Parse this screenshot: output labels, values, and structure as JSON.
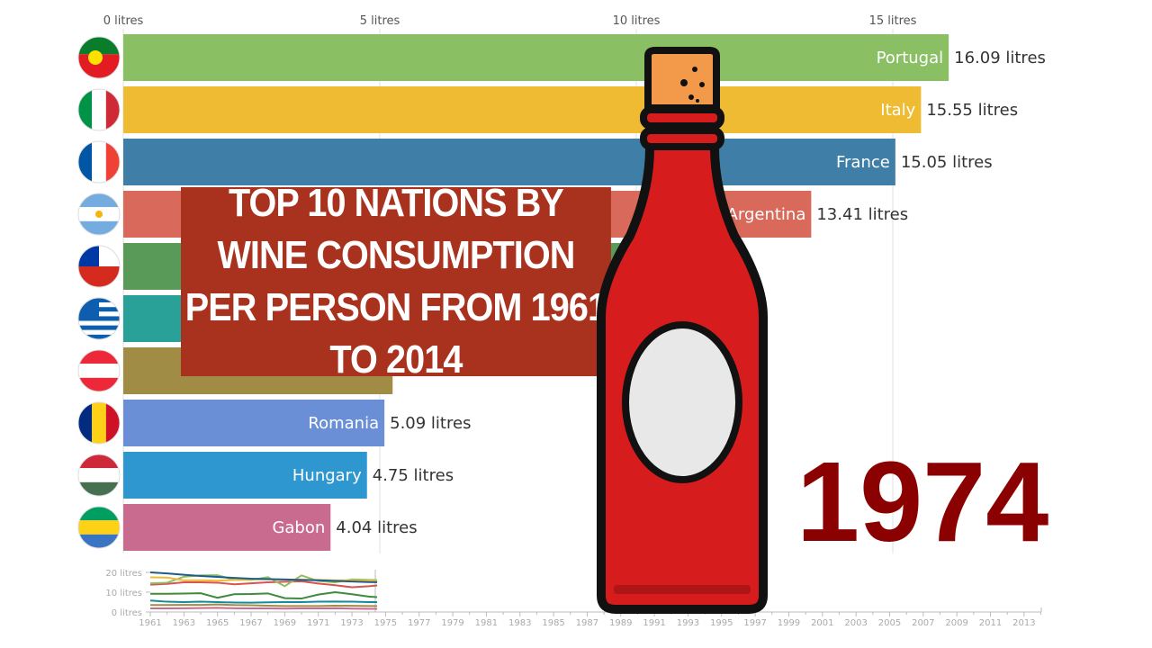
{
  "chart_data": {
    "type": "bar",
    "orientation": "horizontal",
    "title": "TOP 10 NATIONS BY WINE CONSUMPTION PER PERSON FROM 1961 TO 2014",
    "year": "1974",
    "xlim": [
      0,
      18
    ],
    "x_ticks": [
      {
        "v": 0,
        "label": "0 litres"
      },
      {
        "v": 5,
        "label": "5 litres"
      },
      {
        "v": 10,
        "label": "10 litres"
      },
      {
        "v": 15,
        "label": "15 litres"
      }
    ],
    "bars": [
      {
        "name": "Portugal",
        "value": 16.09,
        "value_label": "16.09 litres",
        "color": "#8abf63",
        "flag": "portugal"
      },
      {
        "name": "Italy",
        "value": 15.55,
        "value_label": "15.55 litres",
        "color": "#efbb33",
        "flag": "italy"
      },
      {
        "name": "France",
        "value": 15.05,
        "value_label": "15.05 litres",
        "color": "#3f7ea6",
        "flag": "france"
      },
      {
        "name": "Argentina",
        "value": 13.41,
        "value_label": "13.41 litres",
        "color": "#d9695b",
        "flag": "argentina"
      },
      {
        "value": 10.8,
        "color": "#5a9a58",
        "flag": "chile"
      },
      {
        "value": 8.0,
        "color": "#2aa198",
        "flag": "greece"
      },
      {
        "value": 5.25,
        "color": "#a08c45",
        "flag": "austria"
      },
      {
        "name": "Romania",
        "value": 5.09,
        "value_label": "5.09 litres",
        "color": "#6a8fd6",
        "flag": "romania"
      },
      {
        "name": "Hungary",
        "value": 4.75,
        "value_label": "4.75 litres",
        "color": "#2f97d0",
        "flag": "hungary"
      },
      {
        "name": "Gabon",
        "value": 4.04,
        "value_label": "4.04 litres",
        "color": "#c96b8e",
        "flag": "gabon"
      }
    ],
    "mini_chart": {
      "type": "line",
      "y_ticks": [
        {
          "v": 0,
          "label": "0 litres"
        },
        {
          "v": 10,
          "label": "10 litres"
        },
        {
          "v": 20,
          "label": "20 litres"
        }
      ],
      "ylim": [
        0,
        20
      ],
      "xlim": [
        1961,
        2014
      ],
      "x_ticks": [
        1961,
        1963,
        1965,
        1967,
        1969,
        1971,
        1973,
        1975,
        1977,
        1979,
        1981,
        1983,
        1985,
        1987,
        1989,
        1991,
        1993,
        1995,
        1997,
        1999,
        2001,
        2003,
        2005,
        2007,
        2009,
        2011,
        2013
      ],
      "x": [
        1961,
        1962,
        1963,
        1964,
        1965,
        1966,
        1967,
        1968,
        1969,
        1970,
        1971,
        1972,
        1973,
        1974,
        1974.5
      ],
      "series": [
        {
          "color": "#1f5c8a",
          "values": [
            20,
            19.5,
            18.8,
            18.2,
            17.7,
            17.2,
            16.8,
            16.6,
            16.4,
            16.2,
            16,
            15.7,
            15.4,
            15.1,
            15.05
          ]
        },
        {
          "color": "#efbb33",
          "values": [
            17.5,
            17.4,
            16,
            16,
            15.8,
            16.2,
            16.5,
            16.6,
            16.4,
            16.3,
            16.2,
            16,
            16,
            15.8,
            15.55
          ]
        },
        {
          "color": "#8abf63",
          "values": [
            14.5,
            14.8,
            17.8,
            18.5,
            18.6,
            16.3,
            16.2,
            17.6,
            13,
            18.5,
            15.6,
            15,
            16.5,
            16.2,
            16.09
          ]
        },
        {
          "color": "#d9534f",
          "values": [
            13.8,
            14.2,
            15,
            15,
            14.8,
            14,
            14.5,
            15,
            15.3,
            15.5,
            14.4,
            13.5,
            12.5,
            13,
            13.41
          ]
        },
        {
          "color": "#3d8b3d",
          "values": [
            9.2,
            9.2,
            9.3,
            9.5,
            7.2,
            9,
            9.1,
            9.4,
            7,
            6.8,
            8.8,
            10,
            9,
            7.8,
            7.5
          ]
        },
        {
          "color": "#138a9e",
          "values": [
            5.8,
            5.2,
            5,
            5.2,
            5,
            4.8,
            4.7,
            4.9,
            5,
            5,
            5.2,
            5.3,
            5.2,
            5,
            5
          ]
        },
        {
          "color": "#a08c45",
          "values": [
            3.5,
            3.5,
            3.6,
            3.6,
            3.8,
            3.5,
            3.4,
            3.2,
            3,
            3,
            3,
            3.2,
            3.1,
            3,
            3
          ]
        },
        {
          "color": "#c96b8e",
          "values": [
            1.8,
            1.8,
            1.9,
            2,
            2.1,
            1.9,
            1.8,
            1.8,
            1.7,
            1.8,
            1.8,
            1.9,
            1.7,
            1.6,
            1.6
          ]
        }
      ]
    }
  }
}
